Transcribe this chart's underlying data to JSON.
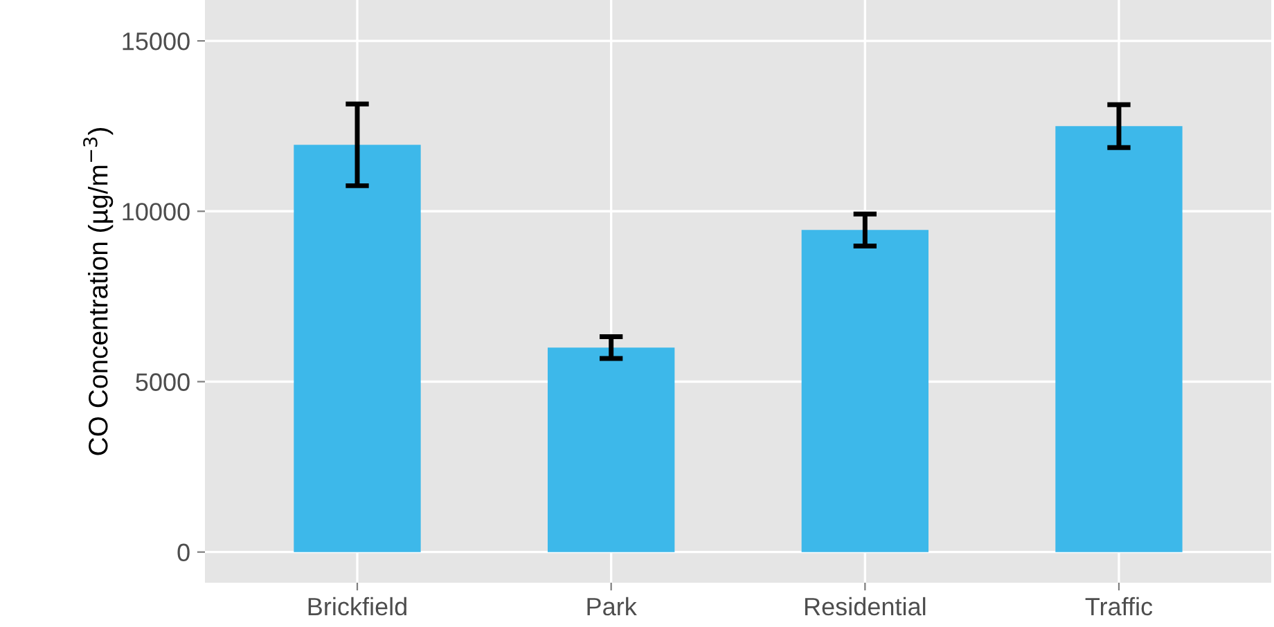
{
  "chart_data": {
    "type": "bar",
    "ylabel": "CO Concentration (µg/m$^{−3}$)",
    "categories": [
      "Brickfield",
      "Park",
      "Residential",
      "Traffic"
    ],
    "values": [
      11950,
      6000,
      9450,
      12500
    ],
    "errors": [
      1200,
      320,
      470,
      630
    ],
    "color": "#3db8ea",
    "ylim": [
      -900,
      16200
    ],
    "yticks": [
      0,
      5000,
      10000,
      15000
    ],
    "grid": true
  }
}
